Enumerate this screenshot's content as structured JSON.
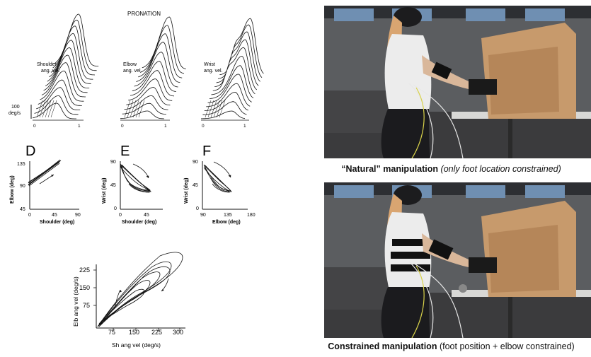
{
  "left_figure": {
    "pronation": {
      "title": "PRONATION",
      "scale_label": "100",
      "scale_unit": "deg/s",
      "panels": [
        {
          "label_line1": "Shoulder",
          "label_line2": "ang. vel.",
          "tick0": "0",
          "tick1": "1"
        },
        {
          "label_line1": "Elbow",
          "label_line2": "ang. vel.",
          "tick0": "0",
          "tick1": "1"
        },
        {
          "label_line1": "Wrist",
          "label_line2": "ang. vel.",
          "tick0": "0",
          "tick1": "1"
        }
      ]
    },
    "angle_plots": [
      {
        "letter": "D",
        "ylabel": "Elbow (deg)",
        "xlabel": "Shoulder (deg)",
        "yticks": [
          "135",
          "90",
          "45"
        ],
        "xticks": [
          "0",
          "45",
          "90"
        ]
      },
      {
        "letter": "E",
        "ylabel": "Wrist (deg)",
        "xlabel": "Shoulder (deg)",
        "yticks": [
          "90",
          "45",
          "0"
        ],
        "xticks": [
          "0",
          "45"
        ]
      },
      {
        "letter": "F",
        "ylabel": "Wrist (deg)",
        "xlabel": "Elbow (deg)",
        "yticks": [
          "90",
          "45",
          "0"
        ],
        "xticks": [
          "90",
          "135",
          "180"
        ]
      }
    ],
    "velocity_plot": {
      "ylabel": "Elb ang vel (deg/s)",
      "xlabel": "Sh ang vel (deg/s)",
      "yticks": [
        "225",
        "150",
        "75"
      ],
      "xticks": [
        "75",
        "150",
        "225",
        "300"
      ]
    }
  },
  "right_panel": {
    "captions": [
      {
        "bold": "“Natural” manipulation",
        "rest": "(only foot location constrained)",
        "rest_italic": true
      },
      {
        "bold": "Constrained manipulation",
        "rest": "(foot position + elbow constrained)",
        "rest_italic": false
      }
    ],
    "colors": {
      "wall": "#5b5d60",
      "cardboard": "#c79a6c",
      "floor": "#3b3b3d",
      "shirt": "#ececec",
      "pants": "#1b1b1e"
    }
  }
}
